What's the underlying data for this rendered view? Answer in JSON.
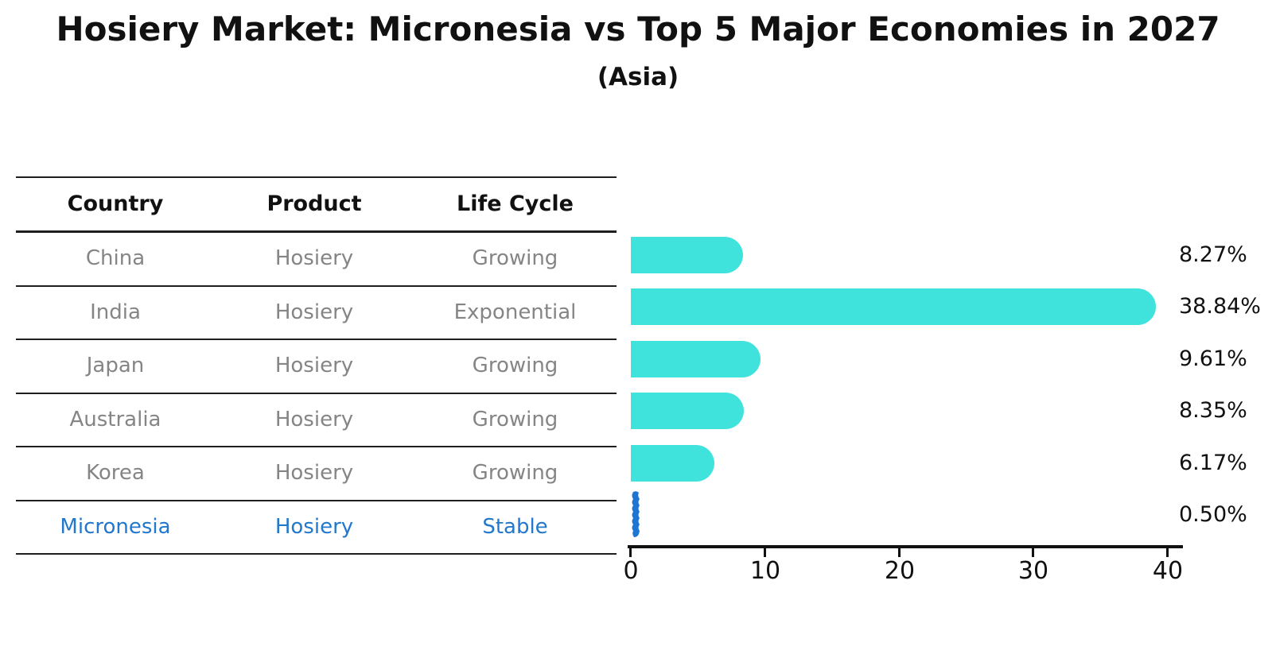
{
  "title": "Hosiery Market: Micronesia vs Top 5 Major Economies in 2027",
  "subtitle": "(Asia)",
  "table": {
    "headers": [
      "Country",
      "Product",
      "Life Cycle"
    ],
    "rows": [
      {
        "country": "China",
        "product": "Hosiery",
        "life_cycle": "Growing"
      },
      {
        "country": "India",
        "product": "Hosiery",
        "life_cycle": "Exponential"
      },
      {
        "country": "Japan",
        "product": "Hosiery",
        "life_cycle": "Growing"
      },
      {
        "country": "Australia",
        "product": "Hosiery",
        "life_cycle": "Growing"
      },
      {
        "country": "Korea",
        "product": "Hosiery",
        "life_cycle": "Growing"
      },
      {
        "country": "Micronesia",
        "product": "Hosiery",
        "life_cycle": "Stable"
      }
    ],
    "highlight_row": "Micronesia"
  },
  "chart_data": {
    "type": "bar",
    "orientation": "horizontal",
    "title": "Hosiery Market: Micronesia vs Top 5 Major Economies in 2027",
    "subtitle": "(Asia)",
    "categories": [
      "China",
      "India",
      "Japan",
      "Australia",
      "Korea",
      "Micronesia"
    ],
    "values": [
      8.27,
      38.84,
      9.61,
      8.35,
      6.17,
      0.5
    ],
    "value_labels": [
      "8.27%",
      "38.84%",
      "9.61%",
      "8.35%",
      "6.17%",
      "0.50%"
    ],
    "xlabel": "",
    "ylabel": "",
    "xlim": [
      0,
      40
    ],
    "xticks": [
      "0",
      "10",
      "20",
      "30",
      "40"
    ],
    "grid": false,
    "legend": "none",
    "bar_color": "#40E2DC",
    "highlight_color": "#1D76D2",
    "highlight_index": 5
  },
  "colors": {
    "text": "#111111",
    "muted_text": "#858585",
    "accent_blue": "#2278cc",
    "line": "#1f1f1f"
  }
}
